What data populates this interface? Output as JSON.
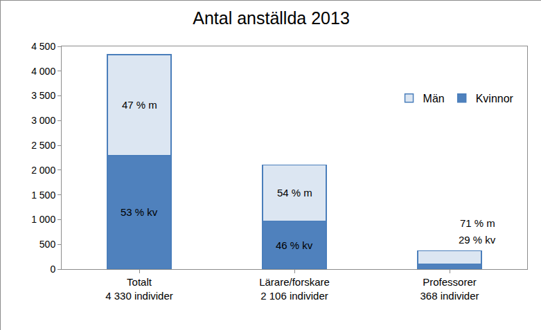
{
  "chart_data": {
    "type": "bar",
    "title": "Antal anställda 2013",
    "stacked": true,
    "categories": [
      "Totalt\n4 330 individer",
      "Lärare/forskare\n2 106 individer",
      "Professorer\n368 individer"
    ],
    "series": [
      {
        "name": "Kvinnor",
        "color": "#4f81bd",
        "values": [
          2295,
          969,
          107
        ]
      },
      {
        "name": "Män",
        "color": "#dce6f2",
        "values": [
          2035,
          1137,
          261
        ]
      }
    ],
    "annotations": [
      {
        "text": "53 % kv",
        "category": "Totalt\n4 330 individer",
        "series": "Kvinnor"
      },
      {
        "text": "47 % m",
        "category": "Totalt\n4 330 individer",
        "series": "Män"
      },
      {
        "text": "46 % kv",
        "category": "Lärare/forskare\n2 106 individer",
        "series": "Kvinnor"
      },
      {
        "text": "54 % m",
        "category": "Lärare/forskare\n2 106 individer",
        "series": "Män"
      },
      {
        "text": "29 % kv",
        "category": "Professorer\n368 individer",
        "series": "Kvinnor"
      },
      {
        "text": "71 % m",
        "category": "Professorer\n368 individer",
        "series": "Män"
      }
    ],
    "ylim": [
      0,
      4500
    ],
    "yticks": [
      0,
      500,
      {
        "value": 1000,
        "label": "1 000"
      },
      {
        "value": 1500,
        "label": "1 500"
      },
      {
        "value": 2000,
        "label": "2 000"
      },
      {
        "value": 2500,
        "label": "2 500"
      },
      {
        "value": 3000,
        "label": "3 000"
      },
      {
        "value": 3500,
        "label": "3 500"
      },
      {
        "value": 4000,
        "label": "4 000"
      },
      {
        "value": 4500,
        "label": "4 500"
      }
    ],
    "grid": false,
    "legend": "upper right"
  }
}
